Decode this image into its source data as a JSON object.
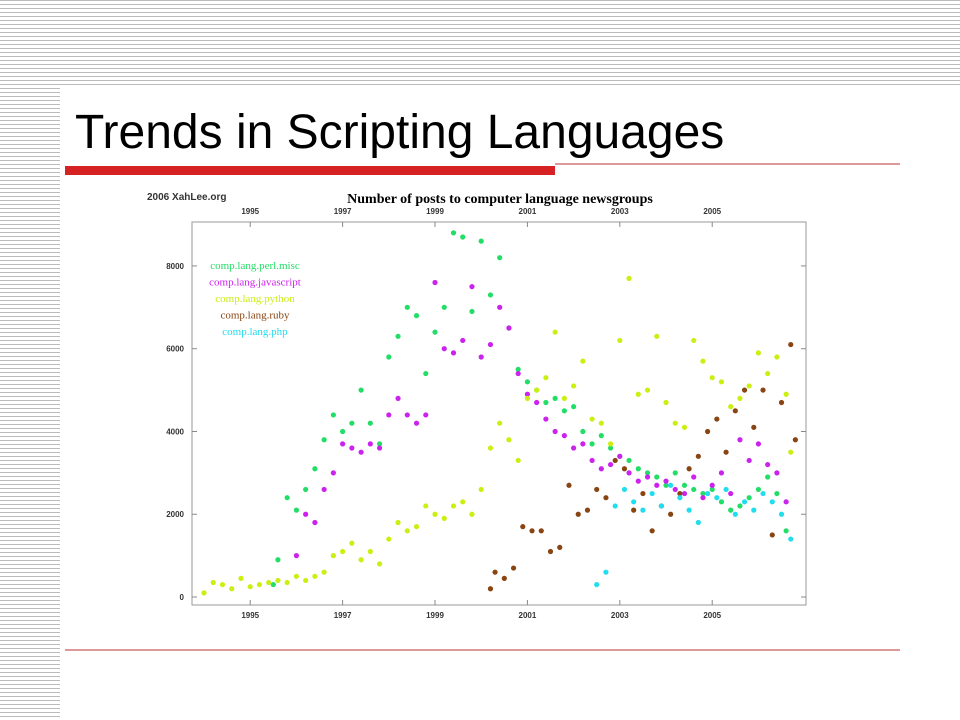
{
  "slide_title": "Trends in Scripting Languages",
  "chart_data": {
    "type": "scatter",
    "title": "Number of posts to computer language newsgroups",
    "watermark": "2006 XahLee.org",
    "xlim": [
      1993.74,
      2007.03
    ],
    "ylim": [
      -193,
      9062
    ],
    "xticks": [
      1995,
      1997,
      1999,
      2001,
      2003,
      2005
    ],
    "yticks": [
      0,
      2000,
      4000,
      6000,
      8000
    ],
    "legend": "upper left",
    "series": [
      {
        "name": "comp.lang.perl.misc",
        "color": "#22dd66",
        "x": [
          1995.5,
          1995.6,
          1995.8,
          1996,
          1996.2,
          1996.4,
          1996.6,
          1996.8,
          1997,
          1997.2,
          1997.4,
          1997.6,
          1997.8,
          1998,
          1998.2,
          1998.4,
          1998.6,
          1998.8,
          1999,
          1999.2,
          1999.4,
          1999.6,
          1999.8,
          2000,
          2000.2,
          2000.4,
          2000.6,
          2000.8,
          2001,
          2001.2,
          2001.4,
          2001.6,
          2001.8,
          2002,
          2002.2,
          2002.4,
          2002.6,
          2002.8,
          2003,
          2003.2,
          2003.4,
          2003.6,
          2003.8,
          2004,
          2004.2,
          2004.4,
          2004.6,
          2004.8,
          2005,
          2005.2,
          2005.4,
          2005.6,
          2005.8,
          2006,
          2006.2,
          2006.4,
          2006.6
        ],
        "values": [
          300,
          900,
          2400,
          2100,
          2600,
          3100,
          3800,
          4400,
          4000,
          4200,
          5000,
          4200,
          3700,
          5800,
          6300,
          7000,
          6800,
          5400,
          6400,
          7000,
          8800,
          8700,
          6900,
          8600,
          7300,
          8200,
          6500,
          5500,
          5200,
          5000,
          4700,
          4800,
          4500,
          4600,
          4000,
          3700,
          3900,
          3600,
          3400,
          3300,
          3100,
          3000,
          2900,
          2700,
          3000,
          2700,
          2600,
          2500,
          2600,
          2300,
          2100,
          2200,
          2400,
          2600,
          2900,
          2500,
          1600
        ]
      },
      {
        "name": "comp.lang.javascript",
        "color": "#cc22ee",
        "x": [
          1996,
          1996.2,
          1996.4,
          1996.6,
          1996.8,
          1997,
          1997.2,
          1997.4,
          1997.6,
          1997.8,
          1998,
          1998.2,
          1998.4,
          1998.6,
          1998.8,
          1999,
          1999.2,
          1999.4,
          1999.6,
          1999.8,
          2000,
          2000.2,
          2000.4,
          2000.6,
          2000.8,
          2001,
          2001.2,
          2001.4,
          2001.6,
          2001.8,
          2002,
          2002.2,
          2002.4,
          2002.6,
          2002.8,
          2003,
          2003.2,
          2003.4,
          2003.6,
          2003.8,
          2004,
          2004.2,
          2004.4,
          2004.6,
          2004.8,
          2005,
          2005.2,
          2005.4,
          2005.6,
          2005.8,
          2006,
          2006.2,
          2006.4,
          2006.6
        ],
        "values": [
          1000,
          2000,
          1800,
          2600,
          3000,
          3700,
          3600,
          3500,
          3700,
          3600,
          4400,
          4800,
          4400,
          4200,
          4400,
          7600,
          6000,
          5900,
          6200,
          7500,
          5800,
          6100,
          7000,
          6500,
          5400,
          4900,
          4700,
          4300,
          4000,
          3900,
          3600,
          3700,
          3300,
          3100,
          3200,
          3400,
          3000,
          2800,
          2900,
          2700,
          2800,
          2600,
          2500,
          2900,
          2400,
          2700,
          3000,
          2500,
          3800,
          3300,
          3700,
          3200,
          3000,
          2300
        ]
      },
      {
        "name": "comp.lang.python",
        "color": "#ccee11",
        "x": [
          1994,
          1994.2,
          1994.4,
          1994.6,
          1994.8,
          1995,
          1995.2,
          1995.4,
          1995.6,
          1995.8,
          1996,
          1996.2,
          1996.4,
          1996.6,
          1996.8,
          1997,
          1997.2,
          1997.4,
          1997.6,
          1997.8,
          1998,
          1998.2,
          1998.4,
          1998.6,
          1998.8,
          1999,
          1999.2,
          1999.4,
          1999.6,
          1999.8,
          2000,
          2000.2,
          2000.4,
          2000.6,
          2000.8,
          2001,
          2001.2,
          2001.4,
          2001.6,
          2001.8,
          2002,
          2002.2,
          2002.4,
          2002.6,
          2002.8,
          2003,
          2003.2,
          2003.4,
          2003.6,
          2003.8,
          2004,
          2004.2,
          2004.4,
          2004.6,
          2004.8,
          2005,
          2005.2,
          2005.4,
          2005.6,
          2005.8,
          2006,
          2006.2,
          2006.4,
          2006.6,
          2006.7
        ],
        "values": [
          100,
          350,
          300,
          200,
          450,
          250,
          300,
          350,
          400,
          350,
          500,
          400,
          500,
          600,
          1000,
          1100,
          1300,
          900,
          1100,
          800,
          1400,
          1800,
          1600,
          1700,
          2200,
          2000,
          1900,
          2200,
          2300,
          2000,
          2600,
          3600,
          4200,
          3800,
          3300,
          4800,
          5000,
          5300,
          6400,
          4800,
          5100,
          5700,
          4300,
          4200,
          3700,
          6200,
          7700,
          4900,
          5000,
          6300,
          4700,
          4200,
          4100,
          6200,
          5700,
          5300,
          5200,
          4600,
          4800,
          5100,
          5900,
          5400,
          5800,
          4900,
          3500
        ]
      },
      {
        "name": "comp.lang.ruby",
        "color": "#884411",
        "x": [
          2000.2,
          2000.3,
          2000.5,
          2000.7,
          2000.9,
          2001.1,
          2001.3,
          2001.5,
          2001.7,
          2001.9,
          2002.1,
          2002.3,
          2002.5,
          2002.7,
          2002.9,
          2003.1,
          2003.3,
          2003.5,
          2003.7,
          2003.9,
          2004.1,
          2004.3,
          2004.5,
          2004.7,
          2004.9,
          2005.1,
          2005.3,
          2005.5,
          2005.7,
          2005.9,
          2006.1,
          2006.3,
          2006.5,
          2006.7,
          2006.8
        ],
        "values": [
          200,
          600,
          450,
          700,
          1700,
          1600,
          1600,
          1100,
          1200,
          2700,
          2000,
          2100,
          2600,
          2400,
          3300,
          3100,
          2100,
          2500,
          1600,
          2200,
          2000,
          2500,
          3100,
          3400,
          4000,
          4300,
          3500,
          4500,
          5000,
          4100,
          5000,
          1500,
          4700,
          6100,
          3800
        ]
      },
      {
        "name": "comp.lang.php",
        "color": "#22ddee",
        "x": [
          2002.5,
          2002.7,
          2002.9,
          2003.1,
          2003.3,
          2003.5,
          2003.7,
          2003.9,
          2004.1,
          2004.3,
          2004.5,
          2004.7,
          2004.9,
          2005.1,
          2005.3,
          2005.5,
          2005.7,
          2005.9,
          2006.1,
          2006.3,
          2006.5,
          2006.7
        ],
        "values": [
          300,
          600,
          2200,
          2600,
          2300,
          2100,
          2500,
          2200,
          2700,
          2400,
          2100,
          1800,
          2500,
          2400,
          2600,
          2000,
          2300,
          2100,
          2500,
          2300,
          2000,
          1400
        ]
      }
    ]
  }
}
